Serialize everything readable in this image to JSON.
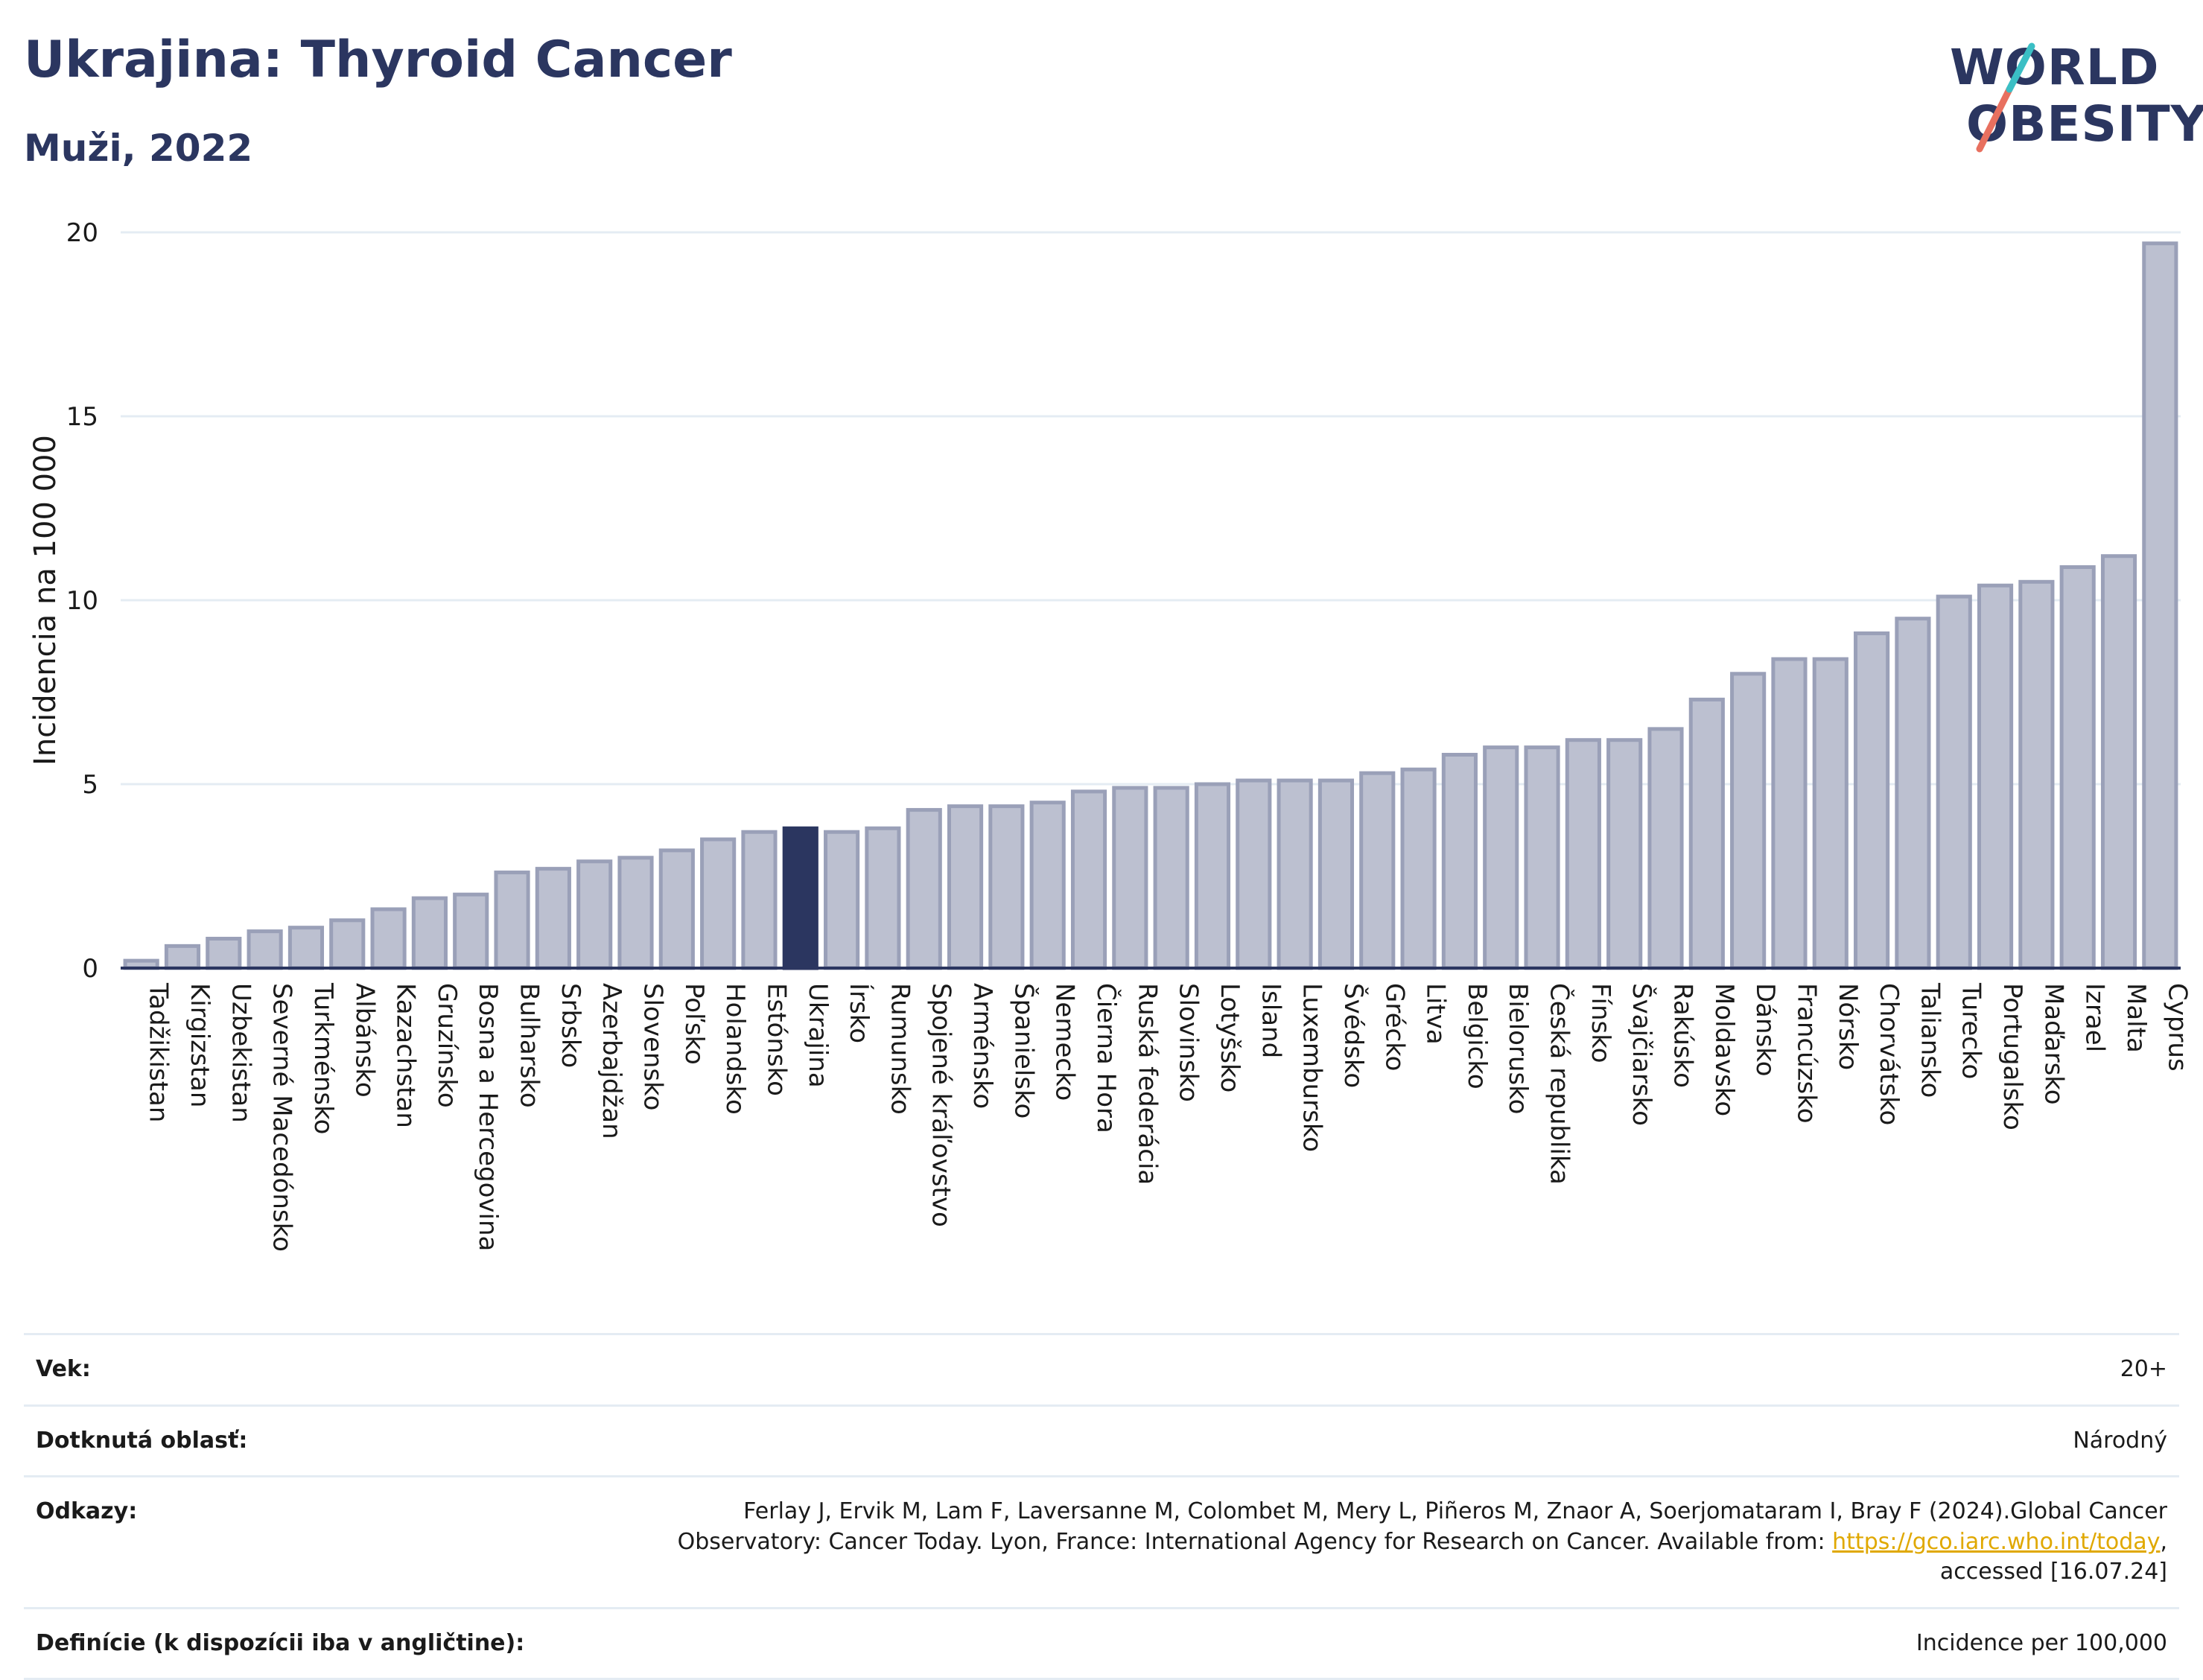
{
  "header": {
    "title": "Ukrajina: Thyroid Cancer",
    "subtitle": "Muži, 2022"
  },
  "logo": {
    "line1": "WORLD",
    "line2": "OBESITY",
    "accent_teal": "#3bbfc5",
    "accent_coral": "#e8705f"
  },
  "colors": {
    "bar": "#bcc0d0",
    "bar_border": "#9aa0b8",
    "highlight": "#2b3660",
    "grid": "#e4ecf3",
    "axis": "#2b3660"
  },
  "chart_data": {
    "type": "bar",
    "ylabel": "Incidencia na 100 000",
    "ylim": [
      0,
      20
    ],
    "yticks": [
      0,
      5,
      10,
      15,
      20
    ],
    "grid": true,
    "highlight": "Ukrajina",
    "categories": [
      "Tadžikistan",
      "Kirgizstan",
      "Uzbekistan",
      "Severné Macedónsko",
      "Turkménsko",
      "Albánsko",
      "Kazachstan",
      "Gruzínsko",
      "Bosna a Hercegovina",
      "Bulharsko",
      "Srbsko",
      "Azerbajdžan",
      "Slovensko",
      "Poľsko",
      "Holandsko",
      "Estónsko",
      "Ukrajina",
      "Írsko",
      "Rumunsko",
      "Spojené kráľovstvo",
      "Arménsko",
      "Španielsko",
      "Nemecko",
      "Čierna Hora",
      "Ruská federácia",
      "Slovinsko",
      "Lotyšsko",
      "Island",
      "Luxembursko",
      "Švédsko",
      "Grécko",
      "Litva",
      "Belgicko",
      "Bielorusko",
      "Česká republika",
      "Fínsko",
      "Švajčiarsko",
      "Rakúsko",
      "Moldavsko",
      "Dánsko",
      "Francúzsko",
      "Nórsko",
      "Chorvátsko",
      "Taliansko",
      "Turecko",
      "Portugalsko",
      "Maďarsko",
      "Izrael",
      "Malta",
      "Cyprus"
    ],
    "values": [
      0.2,
      0.6,
      0.8,
      1.0,
      1.1,
      1.3,
      1.6,
      1.9,
      2.0,
      2.6,
      2.7,
      2.9,
      3.0,
      3.2,
      3.5,
      3.7,
      3.8,
      3.7,
      3.8,
      4.3,
      4.4,
      4.4,
      4.5,
      4.8,
      4.9,
      4.9,
      5.0,
      5.1,
      5.1,
      5.1,
      5.3,
      5.4,
      5.8,
      6.0,
      6.0,
      6.2,
      6.2,
      6.5,
      7.3,
      8.0,
      8.4,
      8.4,
      9.1,
      9.5,
      10.1,
      10.4,
      10.5,
      10.9,
      11.2,
      19.7
    ]
  },
  "details": {
    "age_label": "Vek:",
    "age_value": "20+",
    "area_label": "Dotknutá oblasť:",
    "area_value": "Národný",
    "refs_label": "Odkazy:",
    "refs_text_1": "Ferlay J, Ervik M, Lam F, Laversanne M, Colombet M, Mery L, Piñeros M, Znaor A, Soerjomataram I, Bray F (2024).Global Cancer Observatory: Cancer Today. Lyon, France: International Agency for Research on Cancer. Available from: ",
    "refs_link": "https://gco.iarc.who.int/today",
    "refs_text_2": ", accessed [16.07.24]",
    "def_label": "Definície (k dispozícii iba v angličtine):",
    "def_value": "Incidence per 100,000"
  }
}
